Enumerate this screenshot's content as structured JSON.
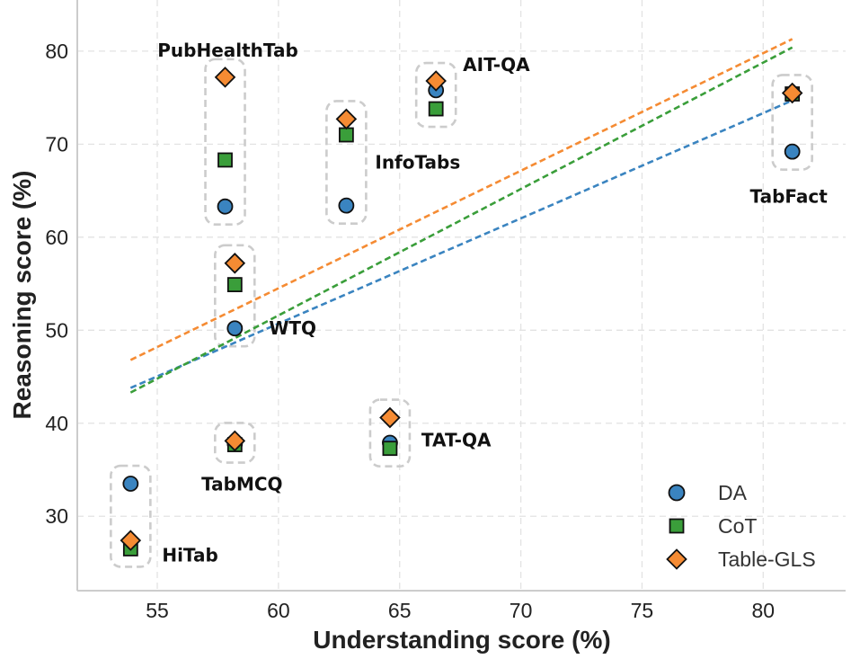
{
  "chart_data": {
    "type": "scatter",
    "title": "",
    "xlabel": "Understanding score (%)",
    "ylabel": "Reasoning score (%)",
    "xlim": [
      51.7,
      83.4
    ],
    "ylim": [
      22.0,
      85.5
    ],
    "xticks": [
      55,
      60,
      65,
      70,
      75,
      80
    ],
    "yticks": [
      30,
      40,
      50,
      60,
      70,
      80
    ],
    "grid": true,
    "legend_position": "bottom-right",
    "series": [
      {
        "name": "DA",
        "marker": "circle",
        "color": "#3a84c0"
      },
      {
        "name": "CoT",
        "marker": "square",
        "color": "#3a9e3a"
      },
      {
        "name": "Table-GLS",
        "marker": "diamond",
        "color": "#f58b33"
      }
    ],
    "datasets": [
      {
        "label": "PubHealthTab",
        "x": 57.8,
        "scores": {
          "DA": 63.3,
          "CoT": 68.3,
          "Table-GLS": 77.2
        }
      },
      {
        "label": "AIT-QA",
        "x": 66.5,
        "scores": {
          "DA": 75.8,
          "CoT": 73.8,
          "Table-GLS": 76.8
        }
      },
      {
        "label": "InfoTabs",
        "x": 62.8,
        "scores": {
          "DA": 63.4,
          "CoT": 71.0,
          "Table-GLS": 72.7
        }
      },
      {
        "label": "TabFact",
        "x": 81.2,
        "scores": {
          "DA": 69.2,
          "CoT": 75.4,
          "Table-GLS": 75.5
        }
      },
      {
        "label": "WTQ",
        "x": 58.2,
        "scores": {
          "DA": 50.2,
          "CoT": 54.9,
          "Table-GLS": 57.2
        }
      },
      {
        "label": "TAT-QA",
        "x": 64.6,
        "scores": {
          "DA": 37.9,
          "CoT": 37.3,
          "Table-GLS": 40.6
        }
      },
      {
        "label": "TabMCQ",
        "x": 58.2,
        "scores": {
          "DA": 37.8,
          "CoT": 37.7,
          "Table-GLS": 38.1
        }
      },
      {
        "label": "HiTab",
        "x": 53.9,
        "scores": {
          "DA": 33.5,
          "CoT": 26.5,
          "Table-GLS": 27.4
        }
      }
    ],
    "trend_lines": [
      {
        "series": "DA",
        "x": [
          53.9,
          81.2
        ],
        "y": [
          43.8,
          74.7
        ]
      },
      {
        "series": "CoT",
        "x": [
          53.9,
          81.2
        ],
        "y": [
          43.3,
          80.4
        ]
      },
      {
        "series": "Table-GLS",
        "x": [
          53.9,
          81.2
        ],
        "y": [
          46.8,
          81.3
        ]
      }
    ]
  }
}
